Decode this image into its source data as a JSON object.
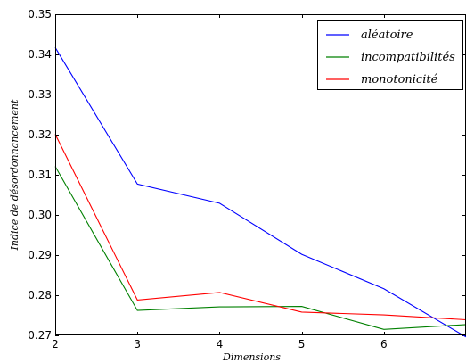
{
  "chart_data": {
    "type": "line",
    "title": "",
    "xlabel": "Dimensions",
    "ylabel": "Indice de désordonnancement",
    "xlim": [
      2,
      7
    ],
    "ylim": [
      0.27,
      0.35
    ],
    "x_ticks": [
      2,
      3,
      4,
      5,
      6
    ],
    "y_ticks": [
      0.27,
      0.28,
      0.29,
      0.3,
      0.31,
      0.32,
      0.33,
      0.34,
      0.35
    ],
    "y_tick_labels": [
      "0.27",
      "0.28",
      "0.29",
      "0.30",
      "0.31",
      "0.32",
      "0.33",
      "0.34",
      "0.35"
    ],
    "grid": false,
    "legend_position": "top-right",
    "x": [
      2,
      3,
      4,
      5,
      6,
      7
    ],
    "series": [
      {
        "name": "aléatoire",
        "color": "#0000ff",
        "values": [
          0.3417,
          0.3077,
          0.3029,
          0.2902,
          0.2816,
          0.2696
        ]
      },
      {
        "name": "incompatibilités",
        "color": "#008000",
        "values": [
          0.3121,
          0.2762,
          0.2771,
          0.2772,
          0.2715,
          0.2727
        ]
      },
      {
        "name": "monotonicité",
        "color": "#ff0000",
        "values": [
          0.3201,
          0.2788,
          0.2807,
          0.2758,
          0.2751,
          0.2739
        ]
      }
    ]
  }
}
